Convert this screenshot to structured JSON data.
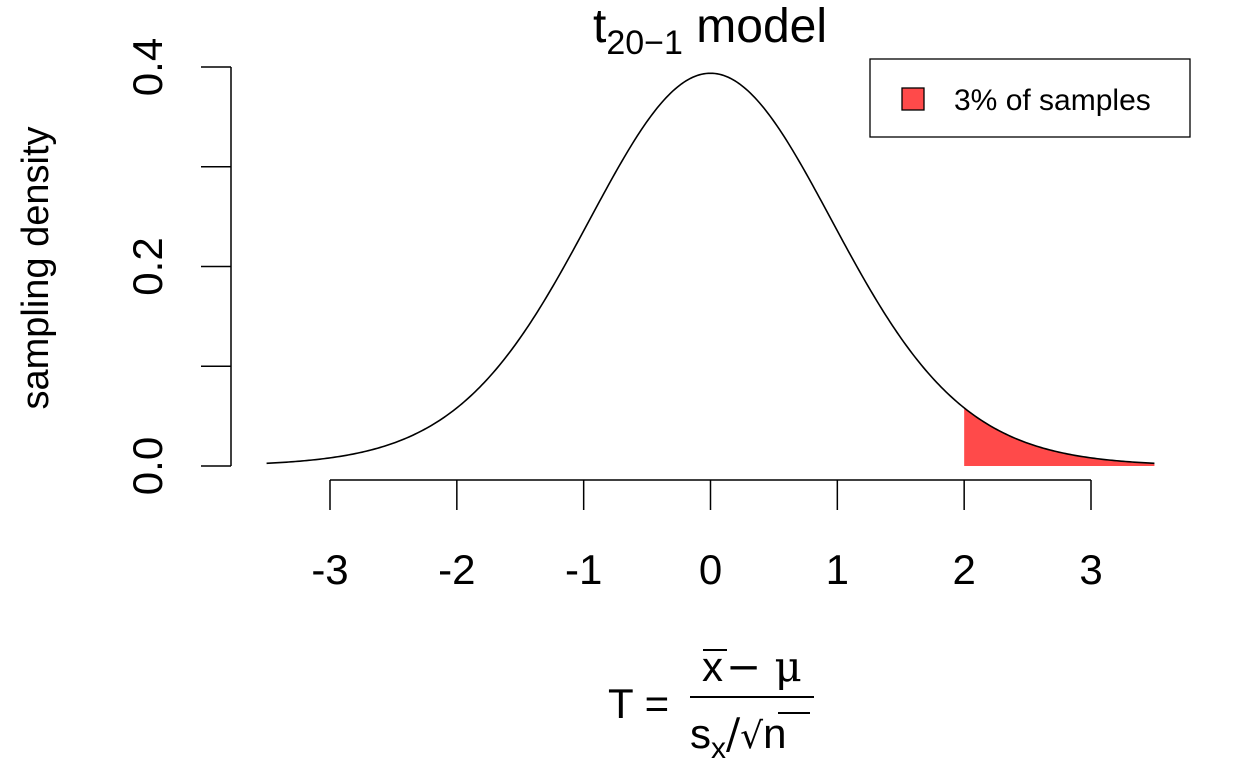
{
  "chart_data": {
    "type": "area",
    "title": {
      "main": "t",
      "subscript": "20−1",
      "suffix": " model"
    },
    "ylabel": "sampling density",
    "xlabel": {
      "lhs": "T =",
      "numerator_xbar": "x",
      "numerator_rest": " − μ",
      "denominator_s": "s",
      "denominator_sub": "x",
      "denominator_slash": "/",
      "denominator_root": "√",
      "denominator_n": "n"
    },
    "xlim": [
      -3.5,
      3.5
    ],
    "ylim": [
      0,
      0.4
    ],
    "x_ticks": [
      -3,
      -2,
      -1,
      0,
      1,
      2,
      3
    ],
    "x_tick_labels": [
      "-3",
      "-2",
      "-1",
      "0",
      "1",
      "2",
      "3"
    ],
    "y_ticks": [
      0,
      0.1,
      0.2,
      0.3,
      0.4
    ],
    "y_tick_labels": [
      "0.0",
      "",
      "0.2",
      "",
      "0.4"
    ],
    "degrees_of_freedom": 19,
    "series": [
      {
        "x": [
          -3.5,
          -3.0,
          -2.5,
          -2.0,
          -1.5,
          -1.0,
          -0.5,
          0.0,
          0.5,
          1.0,
          1.5,
          2.0,
          2.5,
          3.0,
          3.5
        ],
        "y": [
          0.002,
          0.006,
          0.018,
          0.054,
          0.127,
          0.236,
          0.348,
          0.394,
          0.348,
          0.236,
          0.127,
          0.054,
          0.018,
          0.006,
          0.002
        ]
      }
    ],
    "shaded_region": {
      "from": 2.0,
      "to": 3.5,
      "color": "#ff4a4a"
    },
    "legend": {
      "position": "top-right",
      "entries": [
        {
          "label": "3% of samples",
          "color": "#ff4a4a"
        }
      ]
    },
    "grid": false
  }
}
